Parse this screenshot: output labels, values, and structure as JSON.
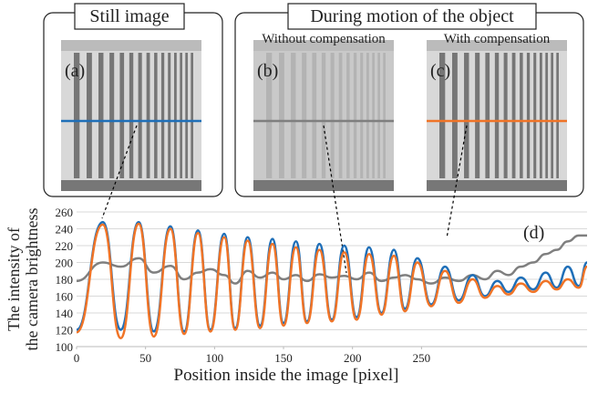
{
  "figure": {
    "panels": [
      {
        "title": "Still image"
      },
      {
        "title": "During motion of the object"
      }
    ],
    "images": [
      {
        "label": "(a)"
      },
      {
        "label": "(b)",
        "caption": "Without compensation"
      },
      {
        "label": "(c)",
        "caption": "With compensation"
      }
    ]
  },
  "chart_data": {
    "type": "line",
    "annotation": "(d)",
    "xlabel": "Position inside the image [pixel]",
    "ylabel": [
      "The intensity of",
      "the camera brightness"
    ],
    "x": [
      0,
      19,
      32,
      45,
      56,
      68,
      78,
      88,
      97,
      107,
      115,
      124,
      133,
      142,
      150,
      159,
      167,
      176,
      185,
      194,
      203,
      212,
      221,
      230,
      238,
      247,
      257,
      267,
      277,
      287,
      296,
      305,
      313,
      322,
      331,
      340,
      348,
      356,
      364,
      370
    ],
    "series": [
      {
        "color": "#1f6fb8",
        "values": [
          120,
          248,
          120,
          248,
          118,
          243,
          118,
          238,
          120,
          234,
          122,
          230,
          125,
          228,
          128,
          225,
          130,
          222,
          132,
          220,
          135,
          218,
          140,
          215,
          145,
          205,
          150,
          195,
          155,
          185,
          160,
          178,
          165,
          182,
          168,
          188,
          170,
          195,
          172,
          200
        ]
      },
      {
        "color": "#f07427",
        "values": [
          117,
          245,
          110,
          246,
          112,
          240,
          115,
          235,
          118,
          230,
          120,
          226,
          122,
          222,
          125,
          218,
          128,
          215,
          130,
          212,
          132,
          210,
          138,
          208,
          142,
          200,
          148,
          190,
          152,
          180,
          158,
          172,
          162,
          175,
          165,
          178,
          168,
          180,
          170,
          195
        ]
      },
      {
        "color": "#7f7f7f",
        "values": [
          178,
          200,
          195,
          205,
          188,
          196,
          180,
          188,
          192,
          185,
          175,
          190,
          182,
          188,
          180,
          185,
          178,
          186,
          182,
          184,
          180,
          188,
          178,
          182,
          185,
          180,
          175,
          182,
          178,
          185,
          180,
          190,
          185,
          195,
          200,
          210,
          215,
          225,
          232,
          232
        ]
      }
    ],
    "xlim": [
      0,
      370
    ],
    "xticks": [
      0,
      50,
      100,
      150,
      200,
      250
    ],
    "ylim": [
      100,
      260
    ],
    "yticks": [
      100,
      120,
      140,
      160,
      180,
      200,
      220,
      240,
      260
    ],
    "grid": true
  }
}
